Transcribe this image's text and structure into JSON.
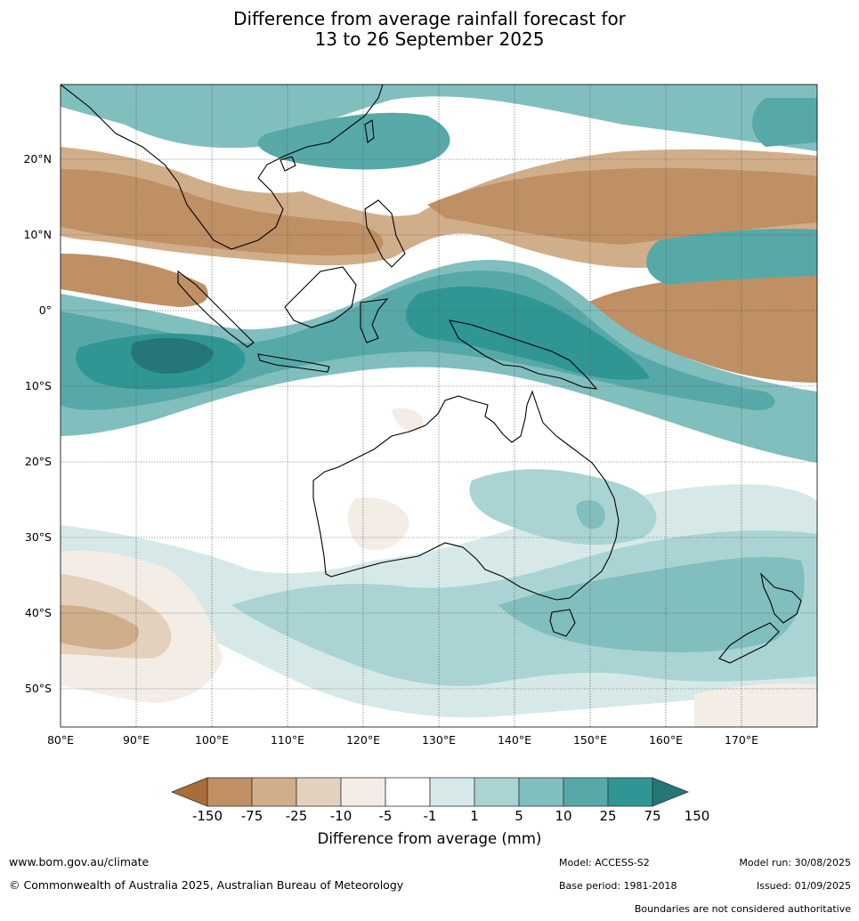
{
  "title": {
    "line1": "Difference from average rainfall forecast for",
    "line2": "13 to 26 September 2025"
  },
  "map": {
    "lon_labels": [
      "80°E",
      "90°E",
      "100°E",
      "110°E",
      "120°E",
      "130°E",
      "140°E",
      "150°E",
      "160°E",
      "170°E"
    ],
    "lat_labels": [
      "20°N",
      "10°N",
      "0°",
      "10°S",
      "20°S",
      "30°S",
      "40°S",
      "50°S"
    ]
  },
  "colorbar": {
    "labels": [
      "-150",
      "-75",
      "-25",
      "-10",
      "-5",
      "-1",
      "1",
      "5",
      "10",
      "25",
      "75",
      "150"
    ],
    "colors": [
      "#a86d38",
      "#bf9064",
      "#d1ae8a",
      "#e4d1bd",
      "#f3ede6",
      "#ffffff",
      "#d6e9e8",
      "#aad4d3",
      "#81bfbe",
      "#57a9a8",
      "#2f9694",
      "#247776"
    ],
    "title": "Difference from average (mm)"
  },
  "footer": {
    "website": "www.bom.gov.au/climate",
    "copyright": "© Commonwealth of Australia 2025, Australian Bureau of Meteorology",
    "model": "Model: ACCESS-S2",
    "model_run": "Model run: 30/08/2025",
    "base_period": "Base period: 1981-2018",
    "issued": "Issued: 01/09/2025",
    "disclaimer": "Boundaries are not considered authoritative"
  }
}
